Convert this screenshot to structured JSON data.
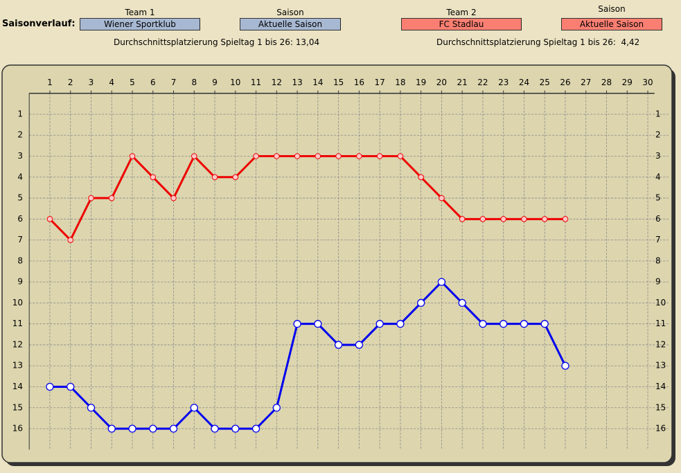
{
  "header": {
    "label": "Saisonverlauf:",
    "team1_label": "Team 1",
    "season1_label": "Saison",
    "season1": "Aktuelle Saison",
    "team2_label": "Team 2",
    "season2_label": "Saison",
    "season2": "Aktuelle Saison",
    "average1": "Durchschnittsplatzierung Spieltag 1 bis 26: 13,04",
    "average2": "Durchschnittsplatzierung Spieltag 1 bis 26:  4,42"
  },
  "chart_data": {
    "type": "line",
    "x": [
      1,
      2,
      3,
      4,
      5,
      6,
      7,
      8,
      9,
      10,
      11,
      12,
      13,
      14,
      15,
      16,
      17,
      18,
      19,
      20,
      21,
      22,
      23,
      24,
      25,
      26
    ],
    "series": [
      {
        "name": "Wiener Sportklub",
        "color": "#0000ee",
        "values": [
          14,
          14,
          15,
          16,
          16,
          16,
          16,
          15,
          16,
          16,
          16,
          15,
          11,
          11,
          12,
          12,
          11,
          11,
          10,
          9,
          10,
          11,
          11,
          11,
          11,
          13
        ]
      },
      {
        "name": "FC Stadlau",
        "color": "#ee0000",
        "values": [
          6,
          7,
          5,
          5,
          3,
          4,
          5,
          3,
          4,
          4,
          3,
          3,
          3,
          3,
          3,
          3,
          3,
          3,
          4,
          5,
          6,
          6,
          6,
          6,
          6,
          6
        ]
      }
    ],
    "xlim": [
      0,
      31
    ],
    "xticks": [
      1,
      2,
      3,
      4,
      5,
      6,
      7,
      8,
      9,
      10,
      11,
      12,
      13,
      14,
      15,
      16,
      17,
      18,
      19,
      20,
      21,
      22,
      23,
      24,
      25,
      26,
      27,
      28,
      29,
      30
    ],
    "ylim": [
      17,
      0
    ],
    "yticks": [
      1,
      2,
      3,
      4,
      5,
      6,
      7,
      8,
      9,
      10,
      11,
      12,
      13,
      14,
      15,
      16
    ],
    "grid": true
  }
}
